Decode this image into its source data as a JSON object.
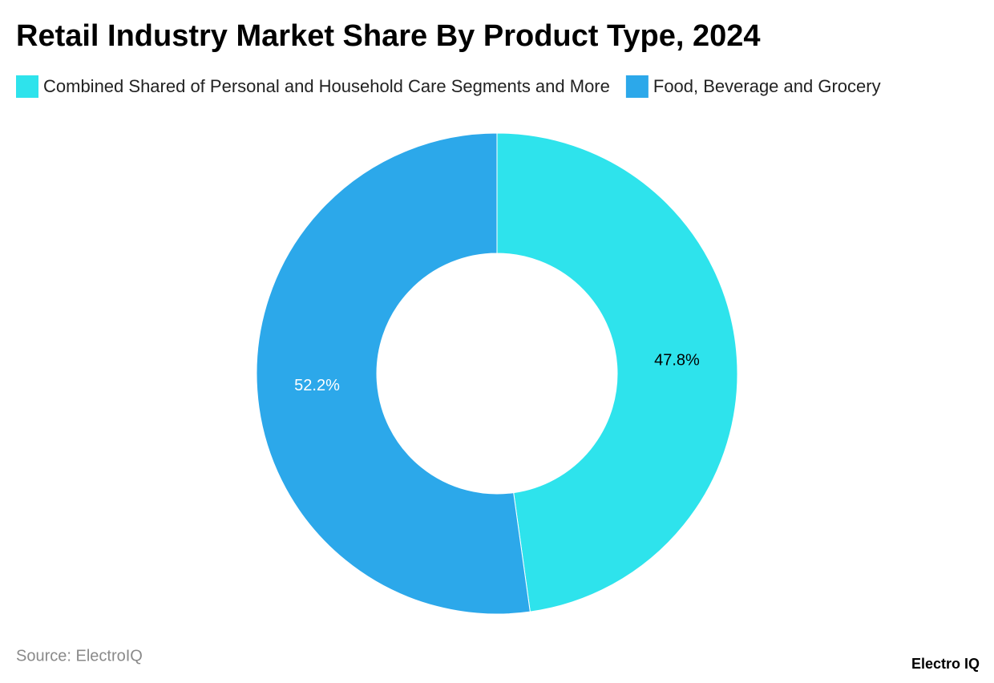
{
  "chart_data": {
    "type": "donut",
    "title": "Retail Industry Market Share By Product Type, 2024",
    "categories": [
      "Combined Shared of Personal and Household Care Segments and More",
      "Food, Beverage and Grocery"
    ],
    "values": [
      47.8,
      52.2
    ],
    "value_labels": [
      "47.8%",
      "52.2%"
    ],
    "colors": [
      "#2ee3ec",
      "#2ca8ea"
    ],
    "source": "Source: ElectroIQ"
  },
  "brand": "Electro IQ"
}
